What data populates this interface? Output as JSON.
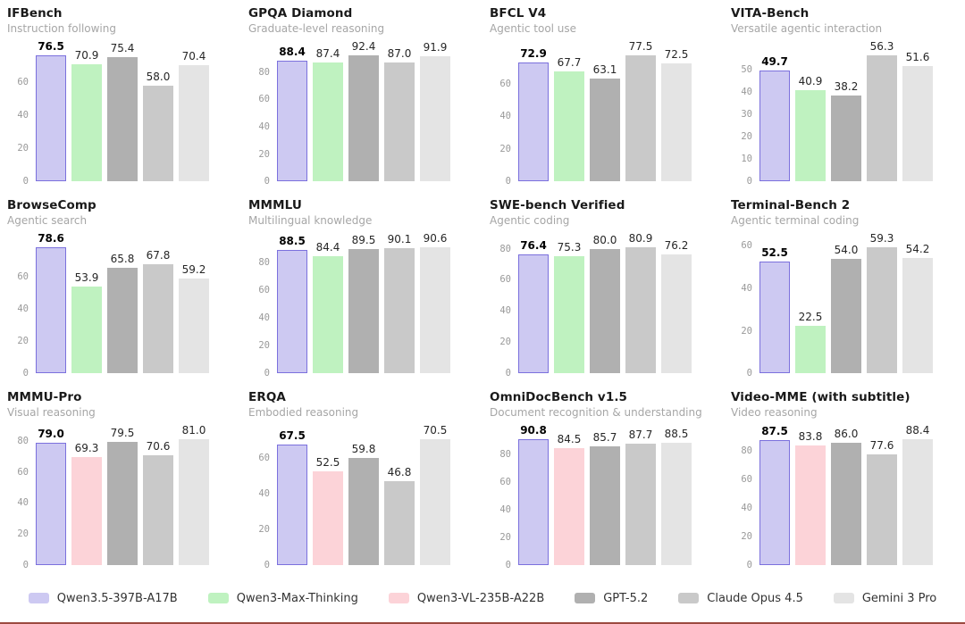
{
  "page": {
    "background": "#ffffff"
  },
  "highlight_model": "Qwen3.5-397B-A17B",
  "legend": {
    "items": [
      {
        "label": "Qwen3.5-397B-A17B",
        "color": "#cdc9f2",
        "border": "#7b70dd"
      },
      {
        "label": "Qwen3-Max-Thinking",
        "color": "#bff2c0"
      },
      {
        "label": "Qwen3-VL-235B-A22B",
        "color": "#fcd3d8"
      },
      {
        "label": "GPT-5.2",
        "color": "#b0b0b0"
      },
      {
        "label": "Claude Opus 4.5",
        "color": "#c9c9c9"
      },
      {
        "label": "Gemini 3 Pro",
        "color": "#e4e4e4"
      }
    ]
  },
  "chart_data": [
    {
      "type": "bar",
      "title": "IFBench",
      "subtitle": "Instruction following",
      "yticks": [
        0,
        20,
        40,
        60
      ],
      "ylim": [
        0,
        80.3
      ],
      "grid": false,
      "series": [
        {
          "model": "Qwen3.5-397B-A17B",
          "value": 76.5
        },
        {
          "model": "Qwen3-Max-Thinking",
          "value": 70.9
        },
        {
          "model": "GPT-5.2",
          "value": 75.4
        },
        {
          "model": "Claude Opus 4.5",
          "value": 58.0
        },
        {
          "model": "Gemini 3 Pro",
          "value": 70.4
        }
      ]
    },
    {
      "type": "bar",
      "title": "GPQA Diamond",
      "subtitle": "Graduate-level reasoning",
      "yticks": [
        0,
        20,
        40,
        60,
        80
      ],
      "ylim": [
        0,
        97.0
      ],
      "grid": false,
      "series": [
        {
          "model": "Qwen3.5-397B-A17B",
          "value": 88.4
        },
        {
          "model": "Qwen3-Max-Thinking",
          "value": 87.4
        },
        {
          "model": "GPT-5.2",
          "value": 92.4
        },
        {
          "model": "Claude Opus 4.5",
          "value": 87.0
        },
        {
          "model": "Gemini 3 Pro",
          "value": 91.9
        }
      ]
    },
    {
      "type": "bar",
      "title": "BFCL V4",
      "subtitle": "Agentic tool use",
      "yticks": [
        0,
        20,
        40,
        60
      ],
      "ylim": [
        0,
        81.4
      ],
      "grid": false,
      "series": [
        {
          "model": "Qwen3.5-397B-A17B",
          "value": 72.9
        },
        {
          "model": "Qwen3-Max-Thinking",
          "value": 67.7
        },
        {
          "model": "GPT-5.2",
          "value": 63.1
        },
        {
          "model": "Claude Opus 4.5",
          "value": 77.5
        },
        {
          "model": "Gemini 3 Pro",
          "value": 72.5
        }
      ]
    },
    {
      "type": "bar",
      "title": "VITA-Bench",
      "subtitle": "Versatile agentic interaction",
      "yticks": [
        0,
        10,
        20,
        30,
        40,
        50
      ],
      "ylim": [
        0,
        59.1
      ],
      "grid": false,
      "series": [
        {
          "model": "Qwen3.5-397B-A17B",
          "value": 49.7
        },
        {
          "model": "Qwen3-Max-Thinking",
          "value": 40.9
        },
        {
          "model": "GPT-5.2",
          "value": 38.2
        },
        {
          "model": "Claude Opus 4.5",
          "value": 56.3
        },
        {
          "model": "Gemini 3 Pro",
          "value": 51.6
        }
      ]
    },
    {
      "type": "bar",
      "title": "BrowseComp",
      "subtitle": "Agentic search",
      "yticks": [
        0,
        20,
        40,
        60
      ],
      "ylim": [
        0,
        82.5
      ],
      "grid": false,
      "series": [
        {
          "model": "Qwen3.5-397B-A17B",
          "value": 78.6
        },
        {
          "model": "Qwen3-Max-Thinking",
          "value": 53.9
        },
        {
          "model": "GPT-5.2",
          "value": 65.8
        },
        {
          "model": "Claude Opus 4.5",
          "value": 67.8
        },
        {
          "model": "Gemini 3 Pro",
          "value": 59.2
        }
      ]
    },
    {
      "type": "bar",
      "title": "MMMLU",
      "subtitle": "Multilingual knowledge",
      "yticks": [
        0,
        20,
        40,
        60,
        80
      ],
      "ylim": [
        0,
        95.1
      ],
      "grid": false,
      "series": [
        {
          "model": "Qwen3.5-397B-A17B",
          "value": 88.5
        },
        {
          "model": "Qwen3-Max-Thinking",
          "value": 84.4
        },
        {
          "model": "GPT-5.2",
          "value": 89.5
        },
        {
          "model": "Claude Opus 4.5",
          "value": 90.1
        },
        {
          "model": "Gemini 3 Pro",
          "value": 90.6
        }
      ]
    },
    {
      "type": "bar",
      "title": "SWE-bench Verified",
      "subtitle": "Agentic coding",
      "yticks": [
        0,
        20,
        40,
        60,
        80
      ],
      "ylim": [
        0,
        84.9
      ],
      "grid": false,
      "series": [
        {
          "model": "Qwen3.5-397B-A17B",
          "value": 76.4
        },
        {
          "model": "Qwen3-Max-Thinking",
          "value": 75.3
        },
        {
          "model": "GPT-5.2",
          "value": 80.0
        },
        {
          "model": "Claude Opus 4.5",
          "value": 80.9
        },
        {
          "model": "Gemini 3 Pro",
          "value": 76.2
        }
      ]
    },
    {
      "type": "bar",
      "title": "Terminal-Bench 2",
      "subtitle": "Agentic terminal coding",
      "yticks": [
        0,
        20,
        40,
        60
      ],
      "ylim": [
        0,
        62.3
      ],
      "grid": false,
      "series": [
        {
          "model": "Qwen3.5-397B-A17B",
          "value": 52.5
        },
        {
          "model": "Qwen3-Max-Thinking",
          "value": 22.5
        },
        {
          "model": "GPT-5.2",
          "value": 54.0
        },
        {
          "model": "Claude Opus 4.5",
          "value": 59.3
        },
        {
          "model": "Gemini 3 Pro",
          "value": 54.2
        }
      ]
    },
    {
      "type": "bar",
      "title": "MMMU-Pro",
      "subtitle": "Visual reasoning",
      "yticks": [
        0,
        20,
        40,
        60,
        80
      ],
      "ylim": [
        0,
        85.1
      ],
      "grid": false,
      "series": [
        {
          "model": "Qwen3.5-397B-A17B",
          "value": 79.0
        },
        {
          "model": "Qwen3-VL-235B-A22B",
          "value": 69.3
        },
        {
          "model": "GPT-5.2",
          "value": 79.5
        },
        {
          "model": "Claude Opus 4.5",
          "value": 70.6
        },
        {
          "model": "Gemini 3 Pro",
          "value": 81.0
        }
      ]
    },
    {
      "type": "bar",
      "title": "ERQA",
      "subtitle": "Embodied reasoning",
      "yticks": [
        0,
        20,
        40,
        60
      ],
      "ylim": [
        0,
        74.0
      ],
      "grid": false,
      "series": [
        {
          "model": "Qwen3.5-397B-A17B",
          "value": 67.5
        },
        {
          "model": "Qwen3-VL-235B-A22B",
          "value": 52.5
        },
        {
          "model": "GPT-5.2",
          "value": 59.8
        },
        {
          "model": "Claude Opus 4.5",
          "value": 46.8
        },
        {
          "model": "Gemini 3 Pro",
          "value": 70.5
        }
      ]
    },
    {
      "type": "bar",
      "title": "OmniDocBench v1.5",
      "subtitle": "Document recognition & understanding",
      "yticks": [
        0,
        20,
        40,
        60,
        80
      ],
      "ylim": [
        0,
        95.3
      ],
      "grid": false,
      "series": [
        {
          "model": "Qwen3.5-397B-A17B",
          "value": 90.8
        },
        {
          "model": "Qwen3-VL-235B-A22B",
          "value": 84.5
        },
        {
          "model": "GPT-5.2",
          "value": 85.7
        },
        {
          "model": "Claude Opus 4.5",
          "value": 87.7
        },
        {
          "model": "Gemini 3 Pro",
          "value": 88.5
        }
      ]
    },
    {
      "type": "bar",
      "title": "Video-MME (with subtitle)",
      "subtitle": "Video reasoning",
      "yticks": [
        0,
        20,
        40,
        60,
        80
      ],
      "ylim": [
        0,
        92.8
      ],
      "grid": false,
      "series": [
        {
          "model": "Qwen3.5-397B-A17B",
          "value": 87.5
        },
        {
          "model": "Qwen3-VL-235B-A22B",
          "value": 83.8
        },
        {
          "model": "GPT-5.2",
          "value": 86.0
        },
        {
          "model": "Claude Opus 4.5",
          "value": 77.6
        },
        {
          "model": "Gemini 3 Pro",
          "value": 88.4
        }
      ]
    }
  ]
}
